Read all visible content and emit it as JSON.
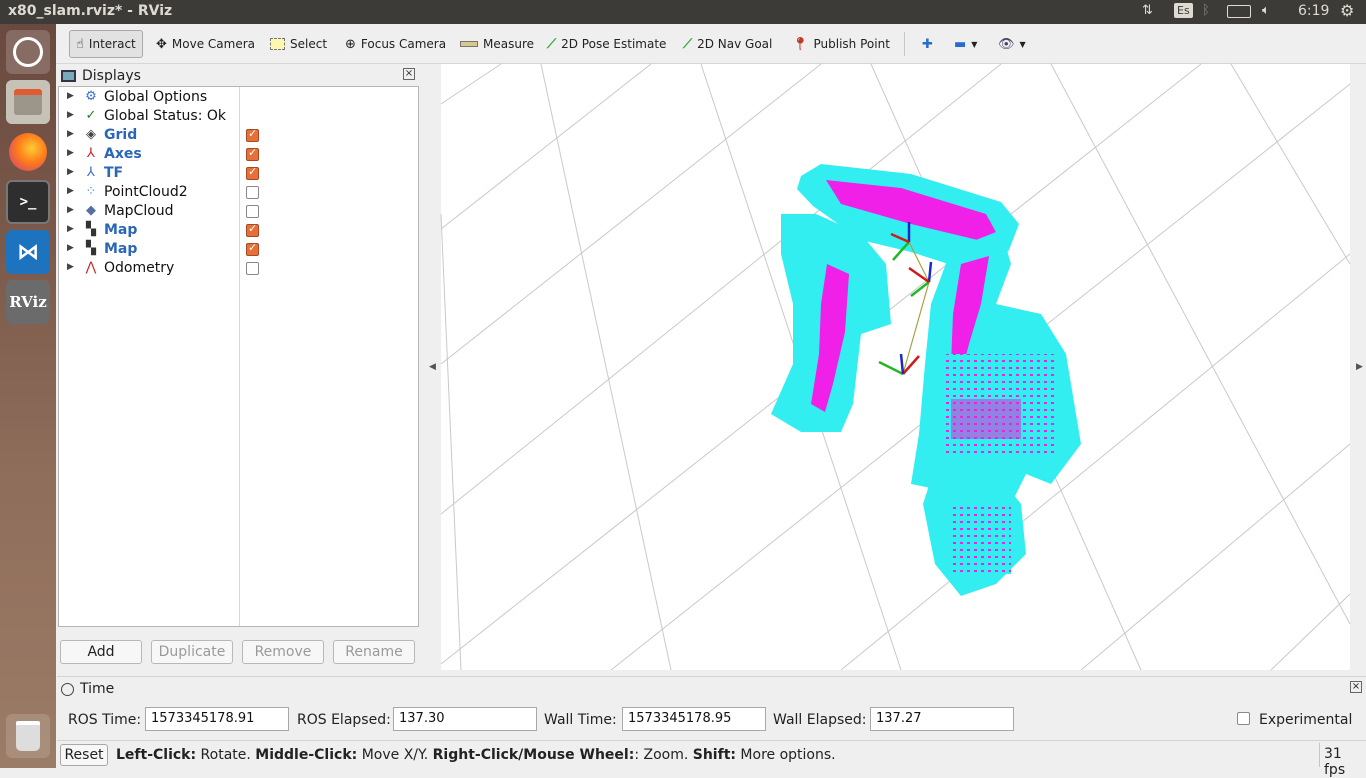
{
  "window": {
    "title": "x80_slam.rviz* - RViz"
  },
  "tray": {
    "keyboard": "Es",
    "clock": "6:19"
  },
  "launcher": {
    "terminal_glyph": ">_",
    "rviz_label": "RViz"
  },
  "toolbar": {
    "interact": "Interact",
    "move_camera": "Move Camera",
    "select": "Select",
    "focus_camera": "Focus Camera",
    "measure": "Measure",
    "pose_estimate": "2D Pose Estimate",
    "nav_goal": "2D Nav Goal",
    "publish_point": "Publish Point"
  },
  "displays": {
    "title": "Displays",
    "items": [
      {
        "label": "Global Options",
        "icon": "gear-icon",
        "highlight": false,
        "checkbox": null
      },
      {
        "label": "Global Status: Ok",
        "icon": "check-icon",
        "highlight": false,
        "checkbox": null
      },
      {
        "label": "Grid",
        "icon": "grid-icon",
        "highlight": true,
        "checkbox": true
      },
      {
        "label": "Axes",
        "icon": "axes-icon",
        "highlight": true,
        "checkbox": true
      },
      {
        "label": "TF",
        "icon": "tf-icon",
        "highlight": true,
        "checkbox": true
      },
      {
        "label": "PointCloud2",
        "icon": "pointcloud-icon",
        "highlight": false,
        "checkbox": false
      },
      {
        "label": "MapCloud",
        "icon": "mapcloud-icon",
        "highlight": false,
        "checkbox": false
      },
      {
        "label": "Map",
        "icon": "map-icon",
        "highlight": true,
        "checkbox": true
      },
      {
        "label": "Map",
        "icon": "map-icon",
        "highlight": true,
        "checkbox": true
      },
      {
        "label": "Odometry",
        "icon": "odometry-icon",
        "highlight": false,
        "checkbox": false
      }
    ],
    "buttons": {
      "add": "Add",
      "duplicate": "Duplicate",
      "remove": "Remove",
      "rename": "Rename"
    }
  },
  "time": {
    "title": "Time",
    "ros_time_label": "ROS Time:",
    "ros_time": "1573345178.91",
    "ros_elapsed_label": "ROS Elapsed:",
    "ros_elapsed": "137.30",
    "wall_time_label": "Wall Time:",
    "wall_time": "1573345178.95",
    "wall_elapsed_label": "Wall Elapsed:",
    "wall_elapsed": "137.27",
    "experimental_label": "Experimental"
  },
  "status": {
    "reset": "Reset",
    "left_click": "Left-Click:",
    "left_click_action": " Rotate. ",
    "middle_click": "Middle-Click:",
    "middle_click_action": " Move X/Y. ",
    "right_click": "Right-Click/Mouse Wheel:",
    "right_click_action": ": Zoom. ",
    "shift": "Shift:",
    "shift_action": " More options.",
    "fps": "31 fps"
  },
  "colors": {
    "map_free": "#33eef0",
    "map_occupied": "#f020e8",
    "accent_checkbox": "#e66f3a",
    "highlight_text": "#2b67b8"
  }
}
